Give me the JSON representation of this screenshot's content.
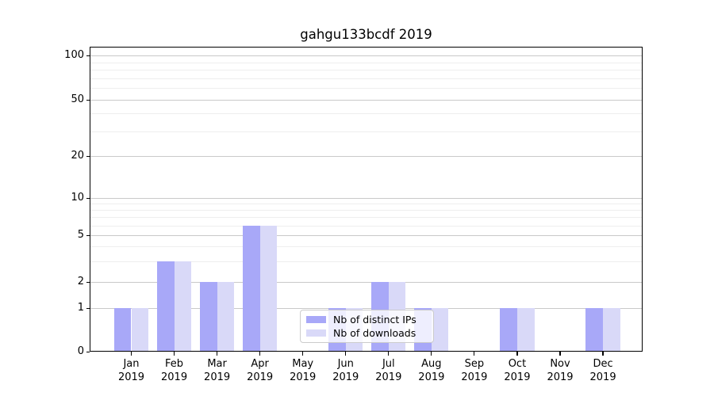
{
  "figure": {
    "title": "gahgu133bcdf 2019"
  },
  "chart_data": {
    "type": "bar",
    "title": "gahgu133bcdf 2019",
    "categories": [
      "Jan",
      "Feb",
      "Mar",
      "Apr",
      "May",
      "Jun",
      "Jul",
      "Aug",
      "Sep",
      "Oct",
      "Nov",
      "Dec"
    ],
    "category_sublabel": "2019",
    "series": [
      {
        "name": "Nb of distinct IPs",
        "color": "#a8a8f8",
        "values": [
          1,
          3,
          2,
          6,
          0,
          1,
          2,
          1,
          0,
          1,
          0,
          1
        ]
      },
      {
        "name": "Nb of downloads",
        "color": "#d9d9f8",
        "values": [
          1,
          3,
          2,
          6,
          0,
          1,
          2,
          1,
          0,
          1,
          0,
          1
        ]
      }
    ],
    "y_axis": {
      "scale": "log-like (0 pinned at baseline)",
      "major_ticks": [
        0,
        1,
        2,
        5,
        10,
        20,
        50,
        100
      ],
      "minor_ticks": [
        3,
        4,
        6,
        7,
        8,
        9,
        30,
        40,
        60,
        70,
        80,
        90
      ],
      "ylim": [
        0,
        115
      ]
    },
    "x_axis": {
      "tick_labels_line1": [
        "Jan",
        "Feb",
        "Mar",
        "Apr",
        "May",
        "Jun",
        "Jul",
        "Aug",
        "Sep",
        "Oct",
        "Nov",
        "Dec"
      ],
      "tick_labels_line2": "2019"
    },
    "legend": {
      "position": "lower-center",
      "entries": [
        "Nb of distinct IPs",
        "Nb of downloads"
      ]
    },
    "grid": "horizontal major + minor",
    "colors": {
      "bar_distinct_ips": "#a8a8f8",
      "bar_downloads": "#d9d9f8",
      "major_grid": "#c9c9c9",
      "minor_grid": "#eeeeee",
      "axis": "#000000",
      "background": "#ffffff"
    }
  }
}
